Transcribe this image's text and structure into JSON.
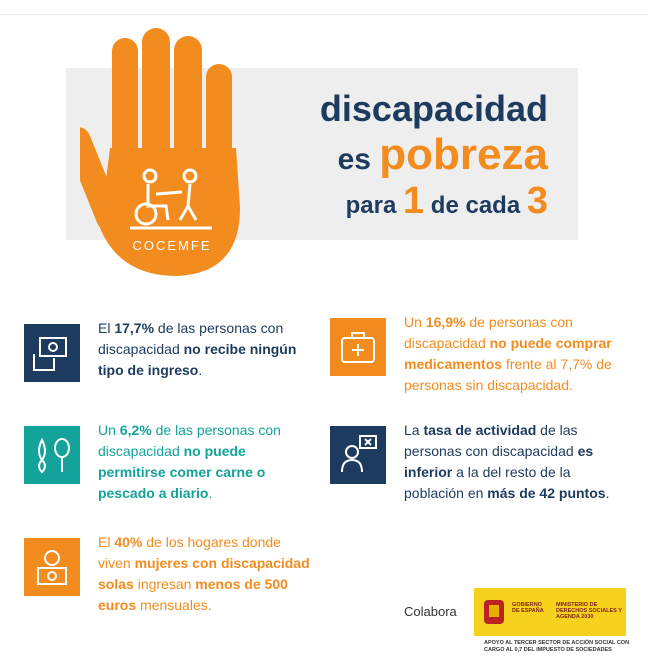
{
  "header": {
    "line1": "discapacidad",
    "line2": [
      "es",
      "pobreza"
    ],
    "line3": [
      "para",
      "1",
      "de cada",
      "3"
    ],
    "logo": "COCEMFE"
  },
  "items": [
    {
      "color": "#1d3a5f",
      "segments": [
        "El ",
        "17,7%",
        " de las personas con discapacidad ",
        "no recibe ningún tipo de ingreso",
        "."
      ]
    },
    {
      "color": "#f28c1e",
      "segments": [
        "Un ",
        "16,9%",
        " de personas con discapacidad ",
        "no puede comprar medicamentos",
        " frente al 7,7% de personas sin discapacidad."
      ]
    },
    {
      "color": "#14a39a",
      "segments": [
        "Un ",
        "6,2%",
        " de las personas con discapacidad ",
        "no puede permitirse comer carne o pescado a diario",
        "."
      ]
    },
    {
      "color": "#1d3a5f",
      "segments": [
        "La ",
        "tasa de actividad",
        " de las personas con discapacidad ",
        "es inferior",
        " a la del resto de la población en ",
        "más de 42 puntos",
        "."
      ]
    },
    {
      "color": "#f28c1e",
      "segments": [
        "El ",
        "40%",
        " de los hogares donde viven ",
        "mujeres con discapacidad solas",
        " ingresan ",
        "menos de 500 euros",
        " mensuales."
      ]
    }
  ],
  "footer": {
    "label": "Colabora",
    "government": "GOBIERNO DE ESPAÑA",
    "ministry": "MINISTERIO DE DERECHOS SOCIALES Y AGENDA 2030",
    "note": "APOYO AL TERCER SECTOR DE ACCIÓN SOCIAL CON CARGO AL 0,7 DEL IMPUESTO DE SOCIEDADES"
  }
}
